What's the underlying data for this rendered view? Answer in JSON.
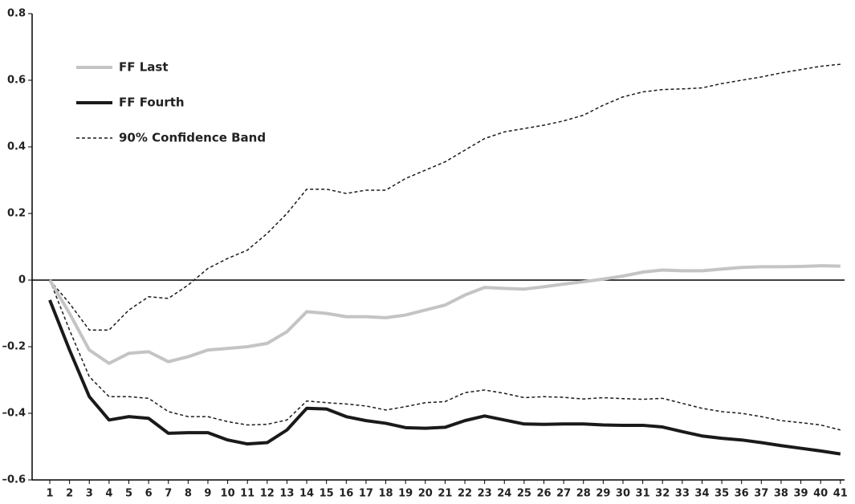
{
  "chart_data": {
    "type": "line",
    "categories": [
      1,
      2,
      3,
      4,
      5,
      6,
      7,
      8,
      9,
      10,
      11,
      12,
      13,
      14,
      15,
      16,
      17,
      18,
      19,
      20,
      21,
      22,
      23,
      24,
      25,
      26,
      27,
      28,
      29,
      30,
      31,
      32,
      33,
      34,
      35,
      36,
      37,
      38,
      39,
      40,
      41
    ],
    "ylim": [
      -0.6,
      0.8
    ],
    "yticks": [
      {
        "value": -0.6,
        "label": "–0.6"
      },
      {
        "value": -0.4,
        "label": "–0.4"
      },
      {
        "value": -0.2,
        "label": "–0.2"
      },
      0,
      0.2,
      0.4,
      0.6,
      0.8
    ],
    "series": [
      {
        "name": "FF Last",
        "color": "#c4c4c4",
        "width": 4,
        "values": [
          0,
          -0.1,
          -0.21,
          -0.25,
          -0.22,
          -0.215,
          -0.245,
          -0.23,
          -0.21,
          -0.205,
          -0.2,
          -0.19,
          -0.155,
          -0.095,
          -0.1,
          -0.11,
          -0.11,
          -0.113,
          -0.105,
          -0.09,
          -0.075,
          -0.045,
          -0.022,
          -0.025,
          -0.027,
          -0.02,
          -0.012,
          -0.005,
          0.003,
          0.012,
          0.024,
          0.03,
          0.028,
          0.028,
          0.033,
          0.038,
          0.04,
          0.04,
          0.041,
          0.043,
          0.042
        ]
      },
      {
        "name": "FF Fourth",
        "color": "#1a1a1a",
        "width": 4,
        "values": [
          -0.06,
          -0.21,
          -0.35,
          -0.42,
          -0.41,
          -0.415,
          -0.46,
          -0.458,
          -0.458,
          -0.48,
          -0.492,
          -0.488,
          -0.45,
          -0.385,
          -0.387,
          -0.41,
          -0.422,
          -0.43,
          -0.443,
          -0.445,
          -0.442,
          -0.422,
          -0.408,
          -0.42,
          -0.432,
          -0.433,
          -0.432,
          -0.432,
          -0.435,
          -0.436,
          -0.436,
          -0.441,
          -0.455,
          -0.468,
          -0.475,
          -0.48,
          -0.488,
          -0.497,
          -0.505,
          -0.513,
          -0.522
        ]
      },
      {
        "name": "90% Confidence Band",
        "color": "#1a1a1a",
        "width": 1.5,
        "dashed": true,
        "upper": [
          0,
          -0.07,
          -0.15,
          -0.15,
          -0.09,
          -0.05,
          -0.055,
          -0.015,
          0.035,
          0.065,
          0.09,
          0.14,
          0.2,
          0.273,
          0.273,
          0.26,
          0.27,
          0.27,
          0.305,
          0.33,
          0.355,
          0.39,
          0.425,
          0.445,
          0.455,
          0.465,
          0.478,
          0.495,
          0.525,
          0.55,
          0.565,
          0.572,
          0.574,
          0.577,
          0.59,
          0.6,
          0.61,
          0.622,
          0.632,
          0.642,
          0.648
        ],
        "lower": [
          0,
          -0.15,
          -0.29,
          -0.35,
          -0.35,
          -0.355,
          -0.395,
          -0.41,
          -0.41,
          -0.425,
          -0.435,
          -0.433,
          -0.42,
          -0.363,
          -0.368,
          -0.372,
          -0.378,
          -0.39,
          -0.38,
          -0.368,
          -0.365,
          -0.338,
          -0.33,
          -0.34,
          -0.353,
          -0.35,
          -0.352,
          -0.357,
          -0.353,
          -0.356,
          -0.358,
          -0.355,
          -0.37,
          -0.385,
          -0.395,
          -0.4,
          -0.41,
          -0.422,
          -0.428,
          -0.435,
          -0.45
        ]
      }
    ]
  }
}
